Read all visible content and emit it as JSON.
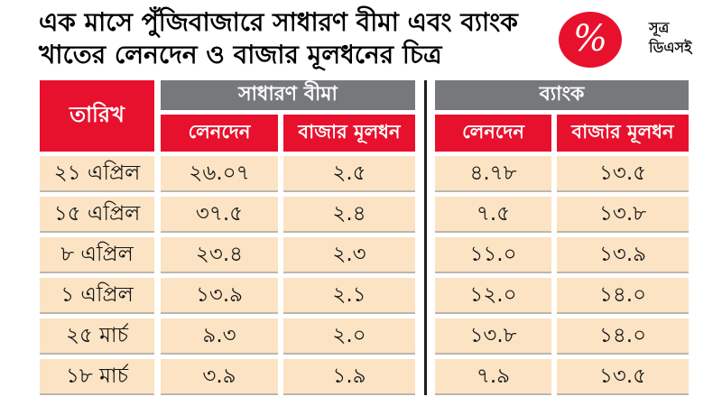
{
  "title": "এক মাসে পুঁজিবাজারে সাধারণ বীমা এবং ব্যাংক খাতের লেনদেন ও বাজার মূলধনের চিত্র",
  "source": {
    "icon": "%",
    "line1": "সূত্র",
    "line2": "ডিএসই"
  },
  "table": {
    "date_header": "তারিখ",
    "groups": [
      {
        "label": "সাধারণ বীমা",
        "columns": [
          "লেনদেন",
          "বাজার মূলধন"
        ]
      },
      {
        "label": "ব্যাংক",
        "columns": [
          "লেনদেন",
          "বাজার মূলধন"
        ]
      }
    ],
    "rows": [
      {
        "date": "২১ এপ্রিল",
        "ins_trade": "২৬.০৭",
        "ins_mcap": "২.৫",
        "bank_trade": "৪.৭৮",
        "bank_mcap": "১৩.৫"
      },
      {
        "date": "১৫ এপ্রিল",
        "ins_trade": "৩৭.৫",
        "ins_mcap": "২.৪",
        "bank_trade": "৭.৫",
        "bank_mcap": "১৩.৮"
      },
      {
        "date": "৮ এপ্রিল",
        "ins_trade": "২৩.৪",
        "ins_mcap": "২.৩",
        "bank_trade": "১১.০",
        "bank_mcap": "১৩.৯"
      },
      {
        "date": "১ এপ্রিল",
        "ins_trade": "১৩.৯",
        "ins_mcap": "২.১",
        "bank_trade": "১২.০",
        "bank_mcap": "১৪.০"
      },
      {
        "date": "২৫ মার্চ",
        "ins_trade": "৯.৩",
        "ins_mcap": "২.০",
        "bank_trade": "১৩.৮",
        "bank_mcap": "১৪.০"
      },
      {
        "date": "১৮ মার্চ",
        "ins_trade": "৩.৯",
        "ins_mcap": "১.৯",
        "bank_trade": "৭.৯",
        "bank_mcap": "১৩.৫"
      }
    ]
  },
  "colors": {
    "accent_red": "#e8112d",
    "header_gray": "#77787b",
    "cell_bg": "#fbe3c4",
    "cell_border": "#bdb6ac",
    "divider": "#1d1d1d"
  },
  "chart_data": {
    "type": "table",
    "title": "এক মাসে পুঁজিবাজারে সাধারণ বীমা এবং ব্যাংক খাতের লেনদেন ও বাজার মূলধনের চিত্র",
    "source": "ডিএসই",
    "column_groups": [
      "সাধারণ বীমা",
      "ব্যাংক"
    ],
    "columns": [
      "তারিখ",
      "সাধারণ বীমা: লেনদেন",
      "সাধারণ বীমা: বাজার মূলধন",
      "ব্যাংক: লেনদেন",
      "ব্যাংক: বাজার মূলধন"
    ],
    "rows": [
      {
        "date_bn": "২১ এপ্রিল",
        "date_en": "21 April",
        "insurance_transaction": 26.07,
        "insurance_market_cap": 2.5,
        "bank_transaction": 4.78,
        "bank_market_cap": 13.5
      },
      {
        "date_bn": "১৫ এপ্রিল",
        "date_en": "15 April",
        "insurance_transaction": 37.5,
        "insurance_market_cap": 2.4,
        "bank_transaction": 7.5,
        "bank_market_cap": 13.8
      },
      {
        "date_bn": "৮ এপ্রিল",
        "date_en": "8 April",
        "insurance_transaction": 23.4,
        "insurance_market_cap": 2.3,
        "bank_transaction": 11.0,
        "bank_market_cap": 13.9
      },
      {
        "date_bn": "১ এপ্রিল",
        "date_en": "1 April",
        "insurance_transaction": 13.9,
        "insurance_market_cap": 2.1,
        "bank_transaction": 12.0,
        "bank_market_cap": 14.0
      },
      {
        "date_bn": "২৫ মার্চ",
        "date_en": "25 March",
        "insurance_transaction": 9.3,
        "insurance_market_cap": 2.0,
        "bank_transaction": 13.8,
        "bank_market_cap": 14.0
      },
      {
        "date_bn": "১৮ মার্চ",
        "date_en": "18 March",
        "insurance_transaction": 3.9,
        "insurance_market_cap": 1.9,
        "bank_transaction": 7.9,
        "bank_market_cap": 13.5
      }
    ]
  }
}
